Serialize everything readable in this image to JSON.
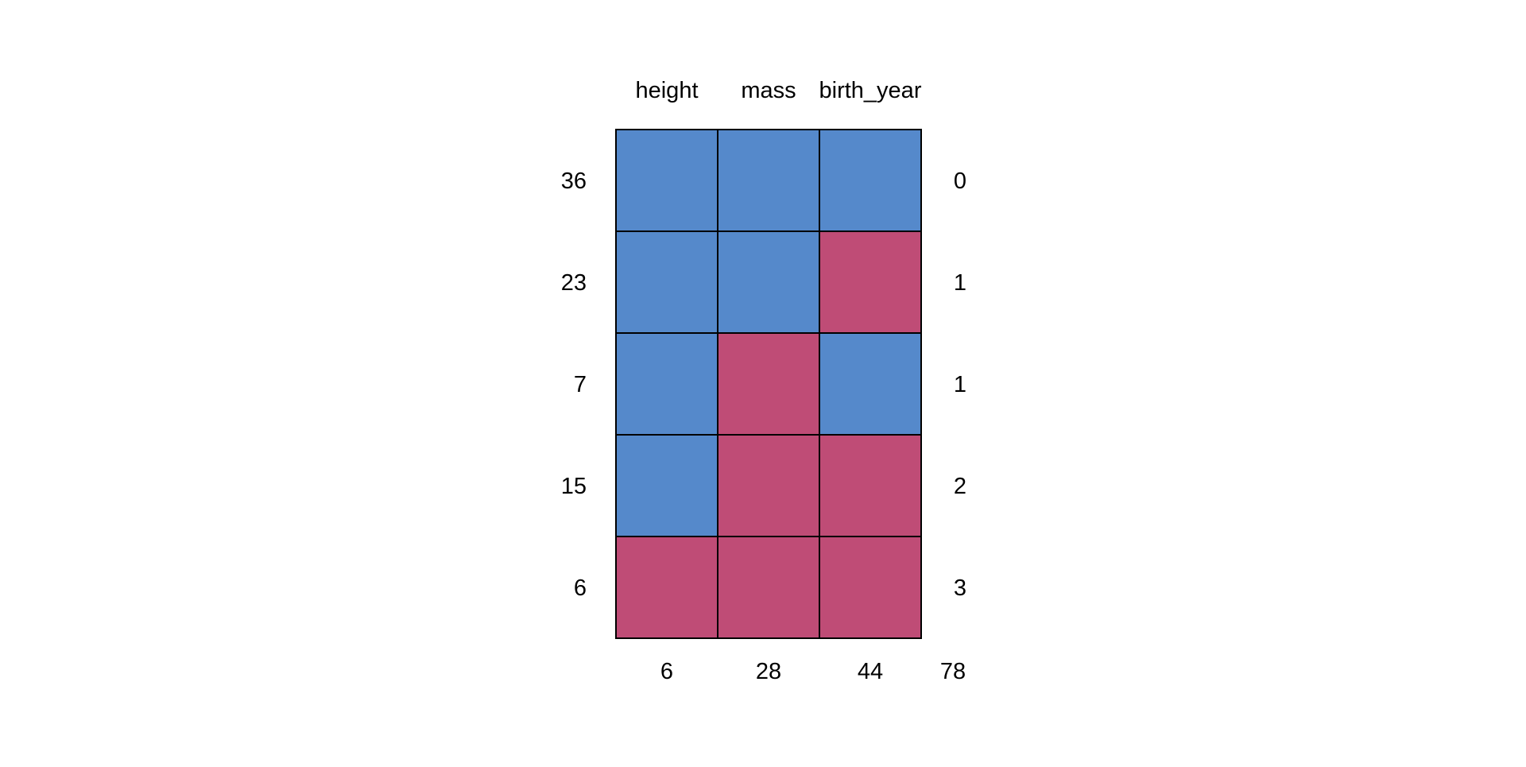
{
  "chart_data": {
    "type": "heatmap",
    "title": "",
    "xlabel": "",
    "ylabel": "",
    "columns": [
      "height",
      "mass",
      "birth_year"
    ],
    "row_counts": [
      "36",
      "23",
      "7",
      "15",
      "6"
    ],
    "row_missing_totals": [
      "0",
      "1",
      "1",
      "2",
      "3"
    ],
    "column_missing_totals": [
      "6",
      "28",
      "44"
    ],
    "total_missing": "78",
    "pattern": [
      [
        1,
        1,
        1
      ],
      [
        1,
        1,
        0
      ],
      [
        1,
        0,
        1
      ],
      [
        1,
        0,
        0
      ],
      [
        0,
        0,
        0
      ]
    ],
    "colors": {
      "observed": "#5589CB",
      "missing": "#BF4C76",
      "border": "#000000"
    },
    "grid": true,
    "legend": "none"
  }
}
